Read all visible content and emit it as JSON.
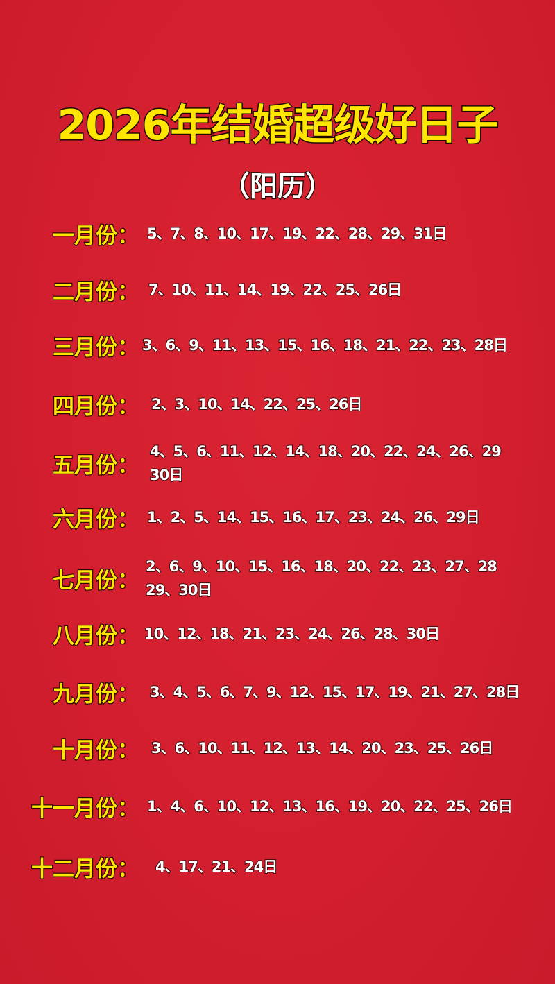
{
  "title": "2026年结婚超级好日子",
  "subtitle": "（阳历）",
  "colors": {
    "background": "#d41f2f",
    "title": "#ffe600",
    "month_label": "#ffe600",
    "dates": "#ffffff"
  },
  "months": [
    {
      "label": "一月份：",
      "dates": [
        "5、7、8、10、17、19、22、28、29、31日"
      ]
    },
    {
      "label": "二月份：",
      "dates": [
        "7、10、11、14、19、22、25、26日"
      ]
    },
    {
      "label": "三月份：",
      "dates": [
        "3、6、9、11、13、15、16、18、21、22、23、28日"
      ]
    },
    {
      "label": "四月份：",
      "dates": [
        "2、3、10、14、22、25、26日"
      ]
    },
    {
      "label": "五月份：",
      "dates": [
        "4、5、6、11、12、14、18、20、22、24、26、29",
        "30日"
      ]
    },
    {
      "label": "六月份：",
      "dates": [
        "1、2、5、14、15、16、17、23、24、26、29日"
      ]
    },
    {
      "label": "七月份：",
      "dates": [
        "2、6、9、10、15、16、18、20、22、23、27、28",
        "29、30日"
      ]
    },
    {
      "label": "八月份：",
      "dates": [
        "10、12、18、21、23、24、26、28、30日"
      ]
    },
    {
      "label": "九月份：",
      "dates": [
        "3、4、5、6、7、9、12、15、17、19、21、27、28日"
      ]
    },
    {
      "label": "十月份：",
      "dates": [
        "3、6、10、11、12、13、14、20、23、25、26日"
      ]
    },
    {
      "label": "十一月份：",
      "dates": [
        "1、4、6、10、12、13、16、19、20、22、25、26日"
      ]
    },
    {
      "label": "十二月份：",
      "dates": [
        "4、17、21、24日"
      ]
    }
  ]
}
